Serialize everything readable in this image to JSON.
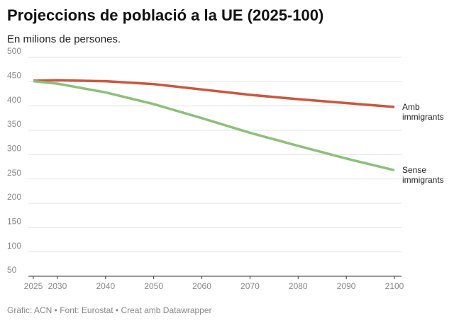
{
  "chart_data": {
    "type": "line",
    "title": "Projeccions de població a la UE (2025-100)",
    "subtitle": "En milions de persones.",
    "source": "Gràfic: ACN • Font: Eurostat • Creat amb Datawrapper",
    "x": [
      2025,
      2030,
      2040,
      2050,
      2060,
      2070,
      2080,
      2090,
      2100
    ],
    "series": [
      {
        "name": "Amb immigrants",
        "color": "#c9573f",
        "values": [
          452,
          453,
          451,
          445,
          434,
          423,
          414,
          406,
          398
        ]
      },
      {
        "name": "Sense immigrants",
        "color": "#8cc07a",
        "values": [
          451,
          446,
          428,
          404,
          375,
          345,
          318,
          292,
          268
        ]
      }
    ],
    "xlim": [
      2025,
      2100
    ],
    "xticks": [
      2025,
      2030,
      2040,
      2050,
      2060,
      2070,
      2080,
      2090,
      2100
    ],
    "ylim": [
      50,
      500
    ],
    "yticks": [
      50,
      100,
      150,
      200,
      250,
      300,
      350,
      400,
      450,
      500
    ],
    "grid": true
  }
}
